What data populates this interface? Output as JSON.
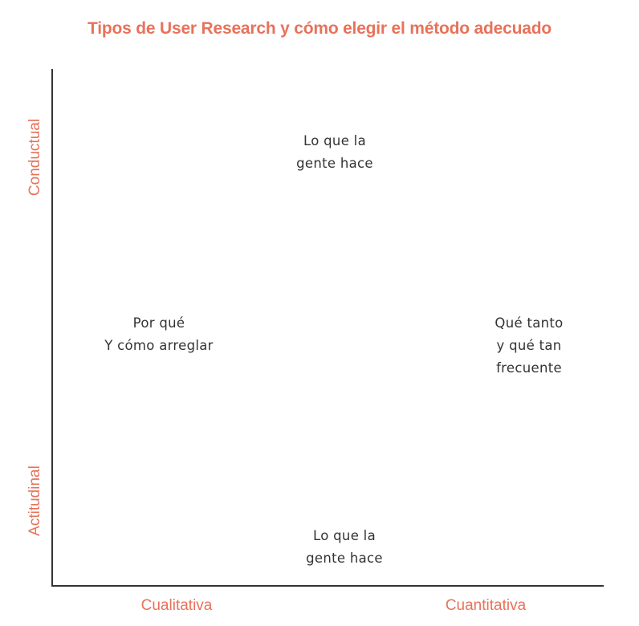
{
  "title": "Tipos de User Research y cómo elegir el método adecuado",
  "axes": {
    "y_top": "Conductual",
    "y_bottom": "Actitudinal",
    "x_left": "Cualitativa",
    "x_right": "Cuantitativa"
  },
  "labels": {
    "top": [
      "Lo que la",
      "gente hace"
    ],
    "left": [
      "Por qué",
      "Y cómo arreglar"
    ],
    "right": [
      "Qué tanto",
      "y qué tan",
      "frecuente"
    ],
    "bottom": [
      "Lo que la",
      "gente hace"
    ]
  },
  "colors": {
    "accent": "#e8725a",
    "text": "#333333",
    "axis": "#333333"
  }
}
